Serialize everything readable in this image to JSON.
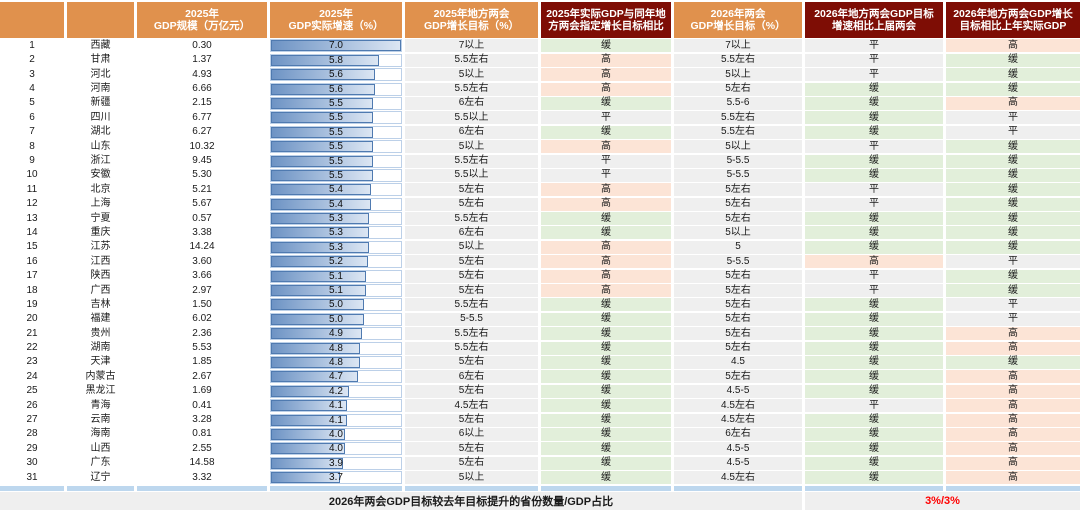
{
  "page": {
    "footer_label": "2026年两会GDP目标较去年目标提升的省份数量/GDP占比",
    "footer_value": "3%/3%"
  },
  "colors": {
    "header_orange": "#e0914d",
    "header_maroon": "#7e0d05",
    "cell_gray": "#efefef",
    "cell_green": "#e2efda",
    "cell_peach": "#fce4d6",
    "bar_fill_start": "#6d93c4",
    "bar_fill_end": "#dce6f3",
    "bar_border": "#4f7ab0",
    "bar_cell_border": "#bcd0e8",
    "strip_blue": "#bdd7ee",
    "footer_red": "#ff0000"
  },
  "chart_data": {
    "type": "table",
    "embedded_bar_column": {
      "type": "bar",
      "label": "2025年GDP实际增速（%）",
      "value_field": "growth",
      "xlim": [
        0,
        7.0
      ]
    },
    "headers": [
      {
        "line1": "",
        "line2": "",
        "style": "orange"
      },
      {
        "line1": "",
        "line2": "",
        "style": "orange"
      },
      {
        "line1": "2025年",
        "line2": "GDP规模（万亿元）",
        "style": "orange"
      },
      {
        "line1": "2025年",
        "line2": "GDP实际增速（%）",
        "style": "orange"
      },
      {
        "line1": "2025年地方两会",
        "line2": "GDP增长目标（%）",
        "style": "orange"
      },
      {
        "line1": "2025年实际GDP与同年地",
        "line2": "方两会指定增长目标相比",
        "style": "maroon"
      },
      {
        "line1": "2026年两会",
        "line2": "GDP增长目标（%）",
        "style": "orange"
      },
      {
        "line1": "2026年地方两会GDP目标",
        "line2": "增速相比上届两会",
        "style": "maroon"
      },
      {
        "line1": "2026年地方两会GDP增长",
        "line2": "目标相比上年实际GDP",
        "style": "maroon"
      }
    ],
    "rows": [
      {
        "rank": 1,
        "province": "西藏",
        "gdp": "0.30",
        "growth": "7.0",
        "t25": "7以上",
        "cmp25": "缓",
        "t26": "7以上",
        "cmp_prev": "平",
        "cmp_actual": "高"
      },
      {
        "rank": 2,
        "province": "甘肃",
        "gdp": "1.37",
        "growth": "5.8",
        "t25": "5.5左右",
        "cmp25": "高",
        "t26": "5.5左右",
        "cmp_prev": "平",
        "cmp_actual": "缓"
      },
      {
        "rank": 3,
        "province": "河北",
        "gdp": "4.93",
        "growth": "5.6",
        "t25": "5以上",
        "cmp25": "高",
        "t26": "5以上",
        "cmp_prev": "平",
        "cmp_actual": "缓"
      },
      {
        "rank": 4,
        "province": "河南",
        "gdp": "6.66",
        "growth": "5.6",
        "t25": "5.5左右",
        "cmp25": "高",
        "t26": "5左右",
        "cmp_prev": "缓",
        "cmp_actual": "缓"
      },
      {
        "rank": 5,
        "province": "新疆",
        "gdp": "2.15",
        "growth": "5.5",
        "t25": "6左右",
        "cmp25": "缓",
        "t26": "5.5-6",
        "cmp_prev": "缓",
        "cmp_actual": "高"
      },
      {
        "rank": 6,
        "province": "四川",
        "gdp": "6.77",
        "growth": "5.5",
        "t25": "5.5以上",
        "cmp25": "平",
        "t26": "5.5左右",
        "cmp_prev": "缓",
        "cmp_actual": "平"
      },
      {
        "rank": 7,
        "province": "湖北",
        "gdp": "6.27",
        "growth": "5.5",
        "t25": "6左右",
        "cmp25": "缓",
        "t26": "5.5左右",
        "cmp_prev": "缓",
        "cmp_actual": "平"
      },
      {
        "rank": 8,
        "province": "山东",
        "gdp": "10.32",
        "growth": "5.5",
        "t25": "5以上",
        "cmp25": "高",
        "t26": "5以上",
        "cmp_prev": "平",
        "cmp_actual": "缓"
      },
      {
        "rank": 9,
        "province": "浙江",
        "gdp": "9.45",
        "growth": "5.5",
        "t25": "5.5左右",
        "cmp25": "平",
        "t26": "5-5.5",
        "cmp_prev": "缓",
        "cmp_actual": "缓"
      },
      {
        "rank": 10,
        "province": "安徽",
        "gdp": "5.30",
        "growth": "5.5",
        "t25": "5.5以上",
        "cmp25": "平",
        "t26": "5-5.5",
        "cmp_prev": "缓",
        "cmp_actual": "缓"
      },
      {
        "rank": 11,
        "province": "北京",
        "gdp": "5.21",
        "growth": "5.4",
        "t25": "5左右",
        "cmp25": "高",
        "t26": "5左右",
        "cmp_prev": "平",
        "cmp_actual": "缓"
      },
      {
        "rank": 12,
        "province": "上海",
        "gdp": "5.67",
        "growth": "5.4",
        "t25": "5左右",
        "cmp25": "高",
        "t26": "5左右",
        "cmp_prev": "平",
        "cmp_actual": "缓"
      },
      {
        "rank": 13,
        "province": "宁夏",
        "gdp": "0.57",
        "growth": "5.3",
        "t25": "5.5左右",
        "cmp25": "缓",
        "t26": "5左右",
        "cmp_prev": "缓",
        "cmp_actual": "缓"
      },
      {
        "rank": 14,
        "province": "重庆",
        "gdp": "3.38",
        "growth": "5.3",
        "t25": "6左右",
        "cmp25": "缓",
        "t26": "5以上",
        "cmp_prev": "缓",
        "cmp_actual": "缓"
      },
      {
        "rank": 15,
        "province": "江苏",
        "gdp": "14.24",
        "growth": "5.3",
        "t25": "5以上",
        "cmp25": "高",
        "t26": "5",
        "cmp_prev": "缓",
        "cmp_actual": "缓"
      },
      {
        "rank": 16,
        "province": "江西",
        "gdp": "3.60",
        "growth": "5.2",
        "t25": "5左右",
        "cmp25": "高",
        "t26": "5-5.5",
        "cmp_prev": "高",
        "cmp_actual": "平"
      },
      {
        "rank": 17,
        "province": "陕西",
        "gdp": "3.66",
        "growth": "5.1",
        "t25": "5左右",
        "cmp25": "高",
        "t26": "5左右",
        "cmp_prev": "平",
        "cmp_actual": "缓"
      },
      {
        "rank": 18,
        "province": "广西",
        "gdp": "2.97",
        "growth": "5.1",
        "t25": "5左右",
        "cmp25": "高",
        "t26": "5左右",
        "cmp_prev": "平",
        "cmp_actual": "缓"
      },
      {
        "rank": 19,
        "province": "吉林",
        "gdp": "1.50",
        "growth": "5.0",
        "t25": "5.5左右",
        "cmp25": "缓",
        "t26": "5左右",
        "cmp_prev": "缓",
        "cmp_actual": "平"
      },
      {
        "rank": 20,
        "province": "福建",
        "gdp": "6.02",
        "growth": "5.0",
        "t25": "5-5.5",
        "cmp25": "缓",
        "t26": "5左右",
        "cmp_prev": "缓",
        "cmp_actual": "平"
      },
      {
        "rank": 21,
        "province": "贵州",
        "gdp": "2.36",
        "growth": "4.9",
        "t25": "5.5左右",
        "cmp25": "缓",
        "t26": "5左右",
        "cmp_prev": "缓",
        "cmp_actual": "高"
      },
      {
        "rank": 22,
        "province": "湖南",
        "gdp": "5.53",
        "growth": "4.8",
        "t25": "5.5左右",
        "cmp25": "缓",
        "t26": "5左右",
        "cmp_prev": "缓",
        "cmp_actual": "高"
      },
      {
        "rank": 23,
        "province": "天津",
        "gdp": "1.85",
        "growth": "4.8",
        "t25": "5左右",
        "cmp25": "缓",
        "t26": "4.5",
        "cmp_prev": "缓",
        "cmp_actual": "缓"
      },
      {
        "rank": 24,
        "province": "内蒙古",
        "gdp": "2.67",
        "growth": "4.7",
        "t25": "6左右",
        "cmp25": "缓",
        "t26": "5左右",
        "cmp_prev": "缓",
        "cmp_actual": "高"
      },
      {
        "rank": 25,
        "province": "黑龙江",
        "gdp": "1.69",
        "growth": "4.2",
        "t25": "5左右",
        "cmp25": "缓",
        "t26": "4.5-5",
        "cmp_prev": "缓",
        "cmp_actual": "高"
      },
      {
        "rank": 26,
        "province": "青海",
        "gdp": "0.41",
        "growth": "4.1",
        "t25": "4.5左右",
        "cmp25": "缓",
        "t26": "4.5左右",
        "cmp_prev": "平",
        "cmp_actual": "高"
      },
      {
        "rank": 27,
        "province": "云南",
        "gdp": "3.28",
        "growth": "4.1",
        "t25": "5左右",
        "cmp25": "缓",
        "t26": "4.5左右",
        "cmp_prev": "缓",
        "cmp_actual": "高"
      },
      {
        "rank": 28,
        "province": "海南",
        "gdp": "0.81",
        "growth": "4.0",
        "t25": "6以上",
        "cmp25": "缓",
        "t26": "6左右",
        "cmp_prev": "缓",
        "cmp_actual": "高"
      },
      {
        "rank": 29,
        "province": "山西",
        "gdp": "2.55",
        "growth": "4.0",
        "t25": "5左右",
        "cmp25": "缓",
        "t26": "4.5-5",
        "cmp_prev": "缓",
        "cmp_actual": "高"
      },
      {
        "rank": 30,
        "province": "广东",
        "gdp": "14.58",
        "growth": "3.9",
        "t25": "5左右",
        "cmp25": "缓",
        "t26": "4.5-5",
        "cmp_prev": "缓",
        "cmp_actual": "高"
      },
      {
        "rank": 31,
        "province": "辽宁",
        "gdp": "3.32",
        "growth": "3.7",
        "t25": "5以上",
        "cmp25": "缓",
        "t26": "4.5左右",
        "cmp_prev": "缓",
        "cmp_actual": "高"
      }
    ]
  }
}
